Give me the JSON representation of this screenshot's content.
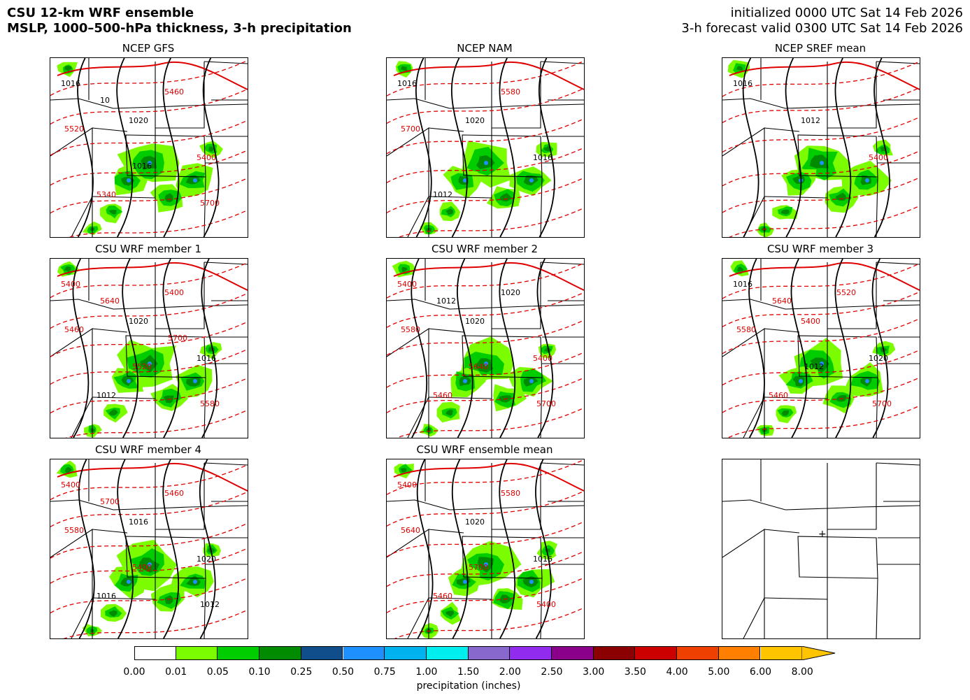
{
  "header": {
    "title_line1": "CSU 12-km WRF ensemble",
    "title_line2": "MSLP, 1000–500-hPa thickness, 3-h precipitation",
    "init_line": "initialized 0000 UTC Sat 14 Feb 2026",
    "valid_line": "3-h forecast valid 0300 UTC Sat 14 Feb 2026"
  },
  "panels": [
    {
      "title": "NCEP GFS",
      "labels": [
        "1016",
        "1020",
        "5400",
        "5340",
        "5460",
        "5520",
        "1016",
        "5700",
        "10"
      ],
      "has_precip": true
    },
    {
      "title": "NCEP NAM",
      "labels": [
        "1016",
        "1020",
        "1016",
        "1012",
        "5580",
        "5700"
      ],
      "has_precip": true
    },
    {
      "title": "NCEP SREF mean",
      "labels": [
        "1016",
        "1012",
        "5400"
      ],
      "has_precip": true
    },
    {
      "title": "CSU WRF member 1",
      "labels": [
        "5400",
        "1020",
        "1016",
        "1012",
        "5400",
        "5460",
        "5520",
        "5580",
        "5640",
        "5700"
      ],
      "has_precip": true
    },
    {
      "title": "CSU WRF member 2",
      "labels": [
        "5400",
        "1020",
        "5400",
        "5460",
        "1020",
        "5580",
        "5640",
        "5700",
        "1012"
      ],
      "has_precip": true
    },
    {
      "title": "CSU WRF member 3",
      "labels": [
        "1016",
        "5400",
        "1020",
        "5460",
        "5520",
        "5580",
        "1012",
        "5700",
        "5640"
      ],
      "has_precip": true
    },
    {
      "title": "CSU WRF member 4",
      "labels": [
        "5400",
        "1016",
        "1020",
        "1016",
        "5460",
        "5580",
        "5400",
        "1012",
        "5700"
      ],
      "has_precip": true
    },
    {
      "title": "CSU WRF ensemble mean",
      "labels": [
        "5400",
        "1020",
        "1016",
        "5460",
        "5580",
        "5640",
        "5700",
        "5400"
      ],
      "has_precip": true
    },
    {
      "title": "",
      "labels": [],
      "has_precip": false
    }
  ],
  "colorbar": {
    "label": "precipitation (inches)",
    "ticks": [
      "0.00",
      "0.01",
      "0.05",
      "0.10",
      "0.25",
      "0.50",
      "0.75",
      "1.00",
      "1.50",
      "2.00",
      "2.50",
      "3.00",
      "3.50",
      "4.00",
      "5.00",
      "6.00",
      "8.00"
    ],
    "colors": [
      "#ffffff",
      "#7cfc00",
      "#00cd00",
      "#008b00",
      "#104e8b",
      "#1e90ff",
      "#00b2ee",
      "#00eeee",
      "#8968cd",
      "#912cee",
      "#8b008b",
      "#8b0000",
      "#cd0000",
      "#ee4000",
      "#ff7f00",
      "#ffc400"
    ]
  },
  "colors": {
    "mslp_contour": "#000000",
    "thickness_contour": "#e00000",
    "freezing_thickness": "#0000cc"
  }
}
